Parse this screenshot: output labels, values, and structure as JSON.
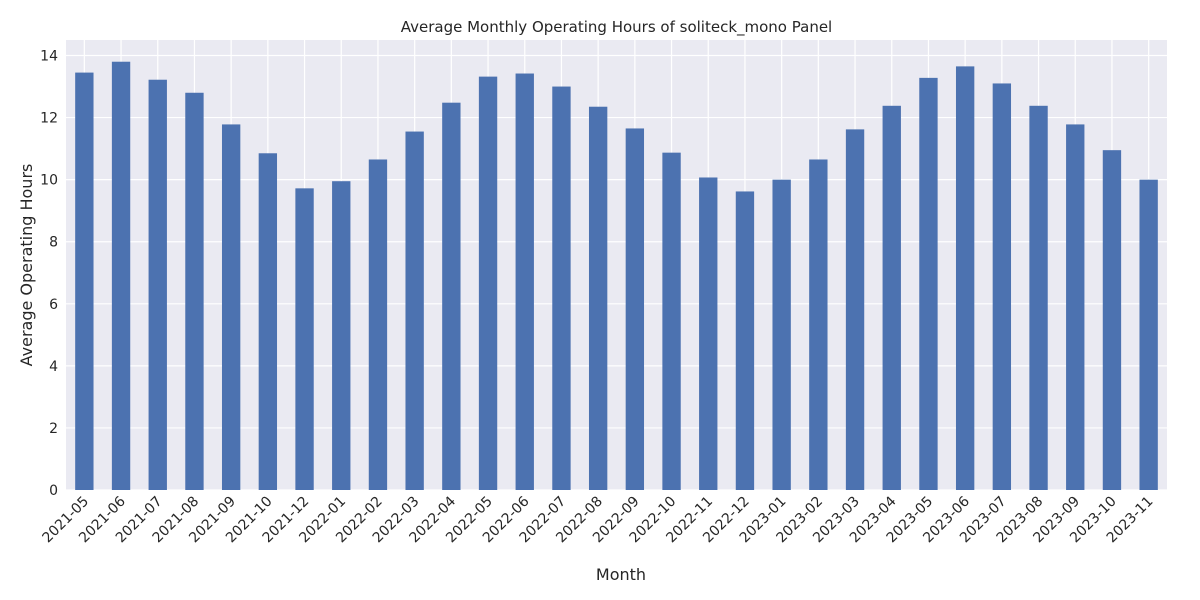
{
  "chart_data": {
    "type": "bar",
    "title": "Average Monthly Operating Hours of soliteck_mono Panel",
    "xlabel": "Month",
    "ylabel": "Average Operating Hours",
    "ylim": [
      0,
      14.5
    ],
    "yticks": [
      0,
      2,
      4,
      6,
      8,
      10,
      12,
      14
    ],
    "grid": true,
    "categories": [
      "2021-05",
      "2021-06",
      "2021-07",
      "2021-08",
      "2021-09",
      "2021-10",
      "2021-12",
      "2022-01",
      "2022-02",
      "2022-03",
      "2022-04",
      "2022-05",
      "2022-06",
      "2022-07",
      "2022-08",
      "2022-09",
      "2022-10",
      "2022-11",
      "2022-12",
      "2023-01",
      "2023-02",
      "2023-03",
      "2023-04",
      "2023-05",
      "2023-06",
      "2023-07",
      "2023-08",
      "2023-09",
      "2023-10",
      "2023-11"
    ],
    "values": [
      13.45,
      13.8,
      13.22,
      12.8,
      11.78,
      10.85,
      9.72,
      9.95,
      10.65,
      11.55,
      12.48,
      13.32,
      13.42,
      13.0,
      12.35,
      11.65,
      10.87,
      10.07,
      9.62,
      10.0,
      10.65,
      11.62,
      12.38,
      13.28,
      13.65,
      13.1,
      12.38,
      11.78,
      10.95,
      10.0
    ],
    "colors": {
      "bar": "#4c72b0",
      "plot_background": "#eaeaf2",
      "grid": "#ffffff"
    }
  }
}
